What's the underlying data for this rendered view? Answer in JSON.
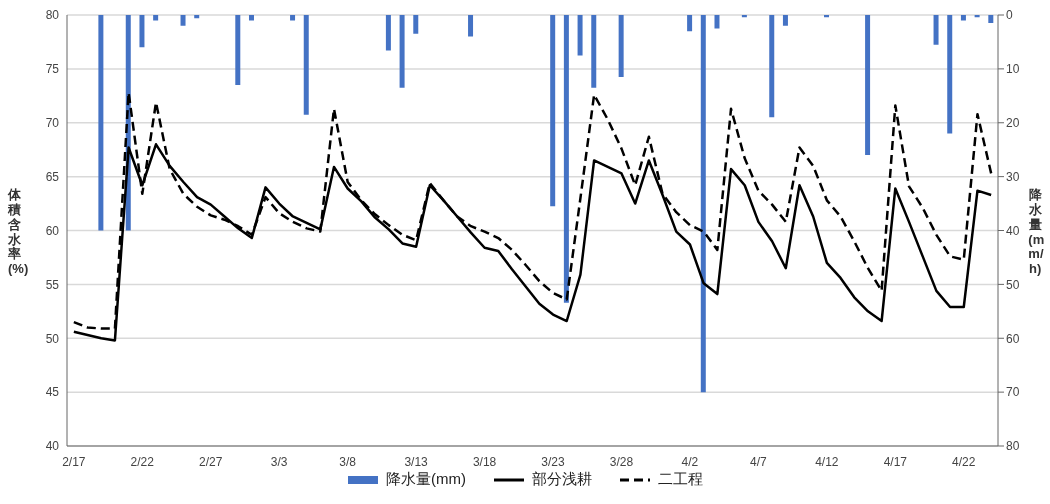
{
  "chart_data": {
    "type": "line",
    "ylabel": "体積含水率(%)",
    "y2label": "降水量(mm/h)",
    "categories": [
      "2/17",
      null,
      null,
      null,
      null,
      "2/22",
      null,
      null,
      null,
      null,
      "2/27",
      null,
      null,
      null,
      null,
      "3/3",
      null,
      null,
      null,
      null,
      "3/8",
      null,
      null,
      null,
      null,
      "3/13",
      null,
      null,
      null,
      null,
      "3/18",
      null,
      null,
      null,
      null,
      "3/23",
      null,
      null,
      null,
      null,
      "3/28",
      null,
      null,
      null,
      null,
      "4/2",
      null,
      null,
      null,
      null,
      "4/7",
      null,
      null,
      null,
      null,
      "4/12",
      null,
      null,
      null,
      null,
      "4/17",
      null,
      null,
      null,
      null,
      "4/22",
      null,
      null
    ],
    "series": [
      {
        "name": "降水量(mm)",
        "type": "bar",
        "axis": "y2",
        "color": "#4472c4",
        "values": [
          null,
          null,
          40,
          null,
          40,
          6,
          1,
          null,
          2,
          0.6,
          null,
          null,
          13,
          1,
          null,
          null,
          1,
          18.5,
          null,
          null,
          null,
          null,
          null,
          6.6,
          13.5,
          3.5,
          null,
          null,
          null,
          4,
          null,
          null,
          null,
          null,
          null,
          35.5,
          53.4,
          7.5,
          13.5,
          null,
          11.5,
          null,
          null,
          null,
          null,
          3,
          70,
          2.5,
          null,
          0.4,
          null,
          19,
          2,
          null,
          null,
          0.4,
          null,
          null,
          26,
          null,
          null,
          null,
          null,
          5.5,
          22,
          1,
          0.4,
          1.5
        ]
      },
      {
        "name": "部分浅耕",
        "color": "#000000",
        "line_style": "solid",
        "values": [
          50.6,
          50.3,
          50.0,
          49.8,
          67.7,
          64.2,
          68.0,
          66.0,
          64.5,
          63.1,
          62.4,
          61.3,
          60.2,
          59.3,
          64.0,
          62.5,
          61.3,
          60.7,
          60.1,
          65.9,
          63.9,
          62.7,
          61.2,
          60.1,
          58.8,
          58.5,
          64.2,
          62.8,
          61.3,
          59.8,
          58.4,
          58.1,
          56.4,
          54.8,
          53.2,
          52.2,
          51.6,
          55.9,
          66.5,
          65.9,
          65.3,
          62.5,
          66.5,
          63.3,
          59.9,
          58.7,
          55.1,
          54.1,
          65.7,
          64.2,
          60.8,
          59.0,
          56.5,
          64.2,
          61.3,
          57.0,
          55.6,
          53.8,
          52.5,
          51.6,
          63.9,
          60.8,
          57.6,
          54.4,
          52.9,
          52.9,
          63.7,
          63.3
        ]
      },
      {
        "name": "二工程",
        "color": "#000000",
        "line_style": "dashed",
        "values": [
          51.5,
          51.0,
          50.9,
          50.9,
          72.8,
          63.4,
          71.9,
          65.7,
          63.4,
          62.2,
          61.4,
          61.0,
          60.4,
          59.6,
          63.1,
          61.6,
          60.8,
          60.2,
          59.9,
          71.3,
          64.5,
          62.8,
          61.5,
          60.5,
          59.6,
          59.1,
          64.4,
          62.8,
          61.3,
          60.4,
          59.9,
          59.3,
          58.2,
          56.8,
          55.3,
          54.2,
          53.6,
          63.0,
          72.6,
          70.3,
          67.6,
          64.2,
          68.7,
          63.4,
          61.7,
          60.5,
          59.9,
          58.2,
          71.3,
          66.7,
          63.7,
          62.4,
          60.8,
          67.7,
          66.0,
          62.8,
          61.3,
          59.0,
          56.5,
          54.4,
          71.6,
          64.1,
          62.1,
          59.6,
          57.6,
          57.3,
          70.8,
          65.3
        ]
      }
    ],
    "ylim": [
      40,
      80
    ],
    "yticks": [
      40,
      45,
      50,
      55,
      60,
      65,
      70,
      75,
      80
    ],
    "y2lim": [
      80,
      0
    ],
    "y2ticks": [
      0,
      10,
      20,
      30,
      40,
      50,
      60,
      70,
      80
    ],
    "grid": "y",
    "legend": "bottom",
    "marker": "none"
  }
}
